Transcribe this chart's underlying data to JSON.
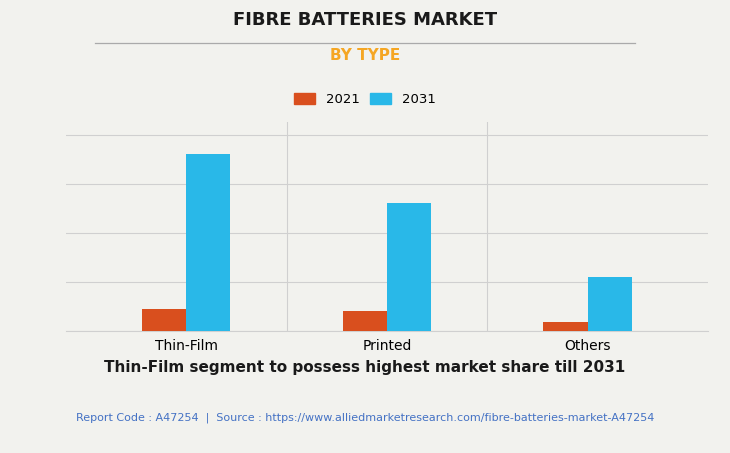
{
  "title": "FIBRE BATTERIES MARKET",
  "subtitle": "BY TYPE",
  "categories": [
    "Thin-Film",
    "Printed",
    "Others"
  ],
  "series": [
    {
      "label": "2021",
      "values": [
        9,
        8,
        3.5
      ],
      "color": "#D94F1E"
    },
    {
      "label": "2031",
      "values": [
        72,
        52,
        22
      ],
      "color": "#29B8E8"
    }
  ],
  "bar_width": 0.22,
  "ylim": [
    0,
    85
  ],
  "background_color": "#F2F2EE",
  "plot_bg_color": "#F2F2EE",
  "title_fontsize": 13,
  "subtitle_fontsize": 11,
  "subtitle_color": "#F5A623",
  "title_color": "#1a1a1a",
  "xtick_fontsize": 10,
  "legend_fontsize": 9.5,
  "footer_text": "Thin-Film segment to possess highest market share till 2031",
  "footer_fontsize": 11,
  "source_text": "Report Code : A47254  |  Source : https://www.alliedmarketresearch.com/fibre-batteries-market-A47254",
  "source_color": "#4472C4",
  "source_fontsize": 8,
  "grid_color": "#d0d0d0",
  "separator_line_color": "#aaaaaa"
}
